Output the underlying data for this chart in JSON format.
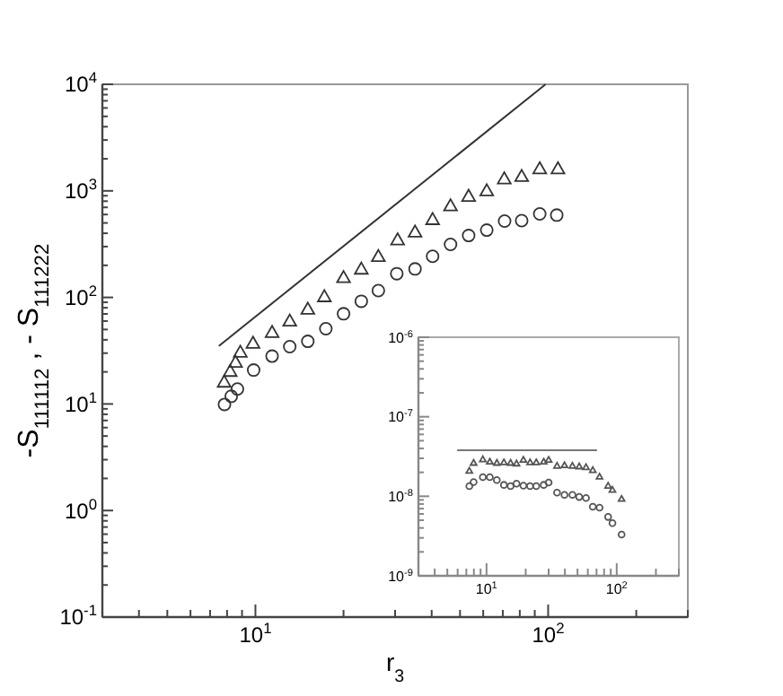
{
  "chart_data": [
    {
      "type": "scatter",
      "xlabel": "r$_{3}$",
      "ylabel": "-S$_{111112}$  ,   - S$_{111222}$",
      "log": "xy",
      "xlim": [
        3,
        300
      ],
      "ylim": [
        0.1,
        10000
      ],
      "xticks": [
        {
          "value": 4,
          "label": null
        },
        {
          "value": 5,
          "label": null
        },
        {
          "value": 6,
          "label": null
        },
        {
          "value": 7,
          "label": null
        },
        {
          "value": 8,
          "label": null
        },
        {
          "value": 9,
          "label": null
        },
        {
          "value": 10,
          "label": "10$^{1}$"
        },
        {
          "value": 20,
          "label": null
        },
        {
          "value": 30,
          "label": null
        },
        {
          "value": 40,
          "label": null
        },
        {
          "value": 50,
          "label": null
        },
        {
          "value": 60,
          "label": null
        },
        {
          "value": 70,
          "label": null
        },
        {
          "value": 80,
          "label": null
        },
        {
          "value": 90,
          "label": null
        },
        {
          "value": 100,
          "label": "10$^{2}$"
        },
        {
          "value": 200,
          "label": null
        },
        {
          "value": 300,
          "label": null
        }
      ],
      "yticks": [
        {
          "value": 0.1,
          "label": "10$^{-1}$"
        },
        {
          "value": 0.2,
          "label": null
        },
        {
          "value": 0.3,
          "label": null
        },
        {
          "value": 0.4,
          "label": null
        },
        {
          "value": 0.5,
          "label": null
        },
        {
          "value": 0.6,
          "label": null
        },
        {
          "value": 0.7,
          "label": null
        },
        {
          "value": 0.8,
          "label": null
        },
        {
          "value": 0.9,
          "label": null
        },
        {
          "value": 1,
          "label": "10$^{0}$"
        },
        {
          "value": 2,
          "label": null
        },
        {
          "value": 3,
          "label": null
        },
        {
          "value": 4,
          "label": null
        },
        {
          "value": 5,
          "label": null
        },
        {
          "value": 6,
          "label": null
        },
        {
          "value": 7,
          "label": null
        },
        {
          "value": 8,
          "label": null
        },
        {
          "value": 9,
          "label": null
        },
        {
          "value": 10,
          "label": "10$^{1}$"
        },
        {
          "value": 20,
          "label": null
        },
        {
          "value": 30,
          "label": null
        },
        {
          "value": 40,
          "label": null
        },
        {
          "value": 50,
          "label": null
        },
        {
          "value": 60,
          "label": null
        },
        {
          "value": 70,
          "label": null
        },
        {
          "value": 80,
          "label": null
        },
        {
          "value": 90,
          "label": null
        },
        {
          "value": 100,
          "label": "10$^{2}$"
        },
        {
          "value": 200,
          "label": null
        },
        {
          "value": 300,
          "label": null
        },
        {
          "value": 400,
          "label": null
        },
        {
          "value": 500,
          "label": null
        },
        {
          "value": 600,
          "label": null
        },
        {
          "value": 700,
          "label": null
        },
        {
          "value": 800,
          "label": null
        },
        {
          "value": 900,
          "label": null
        },
        {
          "value": 1000,
          "label": "10$^{3}$"
        },
        {
          "value": 2000,
          "label": null
        },
        {
          "value": 3000,
          "label": null
        },
        {
          "value": 4000,
          "label": null
        },
        {
          "value": 5000,
          "label": null
        },
        {
          "value": 6000,
          "label": null
        },
        {
          "value": 7000,
          "label": null
        },
        {
          "value": 8000,
          "label": null
        },
        {
          "value": 9000,
          "label": null
        },
        {
          "value": 10000,
          "label": "10$^{4}$"
        }
      ],
      "series": [
        {
          "type": "line",
          "color": "#333333",
          "x": [
            7.5,
            98
          ],
          "values": [
            35,
            10000
          ]
        },
        {
          "marker": "triangle",
          "color": "#333333",
          "x": [
            7.82,
            8.2,
            8.55,
            8.88,
            9.81,
            11.4,
            13.1,
            15.1,
            17.2,
            20.0,
            23.0,
            26.3,
            30.6,
            35.1,
            40.3,
            46.4,
            53.5,
            61.7,
            70.8,
            81.2,
            93.6,
            108
          ],
          "values": [
            16.1,
            20.3,
            24.7,
            30.7,
            37.3,
            47.1,
            60.2,
            77.8,
            102,
            154,
            185,
            243,
            348,
            412,
            540,
            726,
            893,
            1005,
            1300,
            1370,
            1620,
            1620
          ]
        },
        {
          "marker": "circle",
          "color": "#333333",
          "x": [
            7.84,
            8.27,
            8.68,
            9.86,
            11.4,
            13.1,
            15.1,
            17.4,
            20.0,
            23.0,
            26.3,
            30.4,
            35.1,
            40.3,
            46.4,
            53.5,
            61.7,
            71.0,
            81.2,
            93.6,
            107
          ],
          "values": [
            9.9,
            11.8,
            13.8,
            20.8,
            28.1,
            34.5,
            38.7,
            50.8,
            70.2,
            92,
            116,
            167,
            185,
            243,
            314,
            381,
            428,
            520,
            526,
            607,
            592
          ]
        }
      ]
    },
    {
      "type": "scatter",
      "log": "xy",
      "xlim": [
        3,
        300
      ],
      "ylim": [
        1e-09,
        1e-06
      ],
      "xticks": [
        {
          "value": 4,
          "label": null
        },
        {
          "value": 5,
          "label": null
        },
        {
          "value": 6,
          "label": null
        },
        {
          "value": 7,
          "label": null
        },
        {
          "value": 8,
          "label": null
        },
        {
          "value": 9,
          "label": null
        },
        {
          "value": 10,
          "label": "10$^{1}$"
        },
        {
          "value": 20,
          "label": null
        },
        {
          "value": 30,
          "label": null
        },
        {
          "value": 40,
          "label": null
        },
        {
          "value": 50,
          "label": null
        },
        {
          "value": 60,
          "label": null
        },
        {
          "value": 70,
          "label": null
        },
        {
          "value": 80,
          "label": null
        },
        {
          "value": 90,
          "label": null
        },
        {
          "value": 100,
          "label": "10$^{2}$"
        },
        {
          "value": 200,
          "label": null
        },
        {
          "value": 300,
          "label": null
        }
      ],
      "yticks": [
        {
          "value": 1e-09,
          "label": "10$^{-9}$"
        },
        {
          "value": 2e-09,
          "label": null
        },
        {
          "value": 3e-09,
          "label": null
        },
        {
          "value": 4e-09,
          "label": null
        },
        {
          "value": 5e-09,
          "label": null
        },
        {
          "value": 6e-09,
          "label": null
        },
        {
          "value": 7e-09,
          "label": null
        },
        {
          "value": 8e-09,
          "label": null
        },
        {
          "value": 9e-09,
          "label": null
        },
        {
          "value": 1e-08,
          "label": "10$^{-8}$"
        },
        {
          "value": 2e-08,
          "label": null
        },
        {
          "value": 3e-08,
          "label": null
        },
        {
          "value": 4e-08,
          "label": null
        },
        {
          "value": 5e-08,
          "label": null
        },
        {
          "value": 6e-08,
          "label": null
        },
        {
          "value": 7e-08,
          "label": null
        },
        {
          "value": 8e-08,
          "label": null
        },
        {
          "value": 9e-08,
          "label": null
        },
        {
          "value": 1e-07,
          "label": "10$^{-7}$"
        },
        {
          "value": 2e-07,
          "label": null
        },
        {
          "value": 3e-07,
          "label": null
        },
        {
          "value": 4e-07,
          "label": null
        },
        {
          "value": 5e-07,
          "label": null
        },
        {
          "value": 6e-07,
          "label": null
        },
        {
          "value": 7e-07,
          "label": null
        },
        {
          "value": 8e-07,
          "label": null
        },
        {
          "value": 9e-07,
          "label": null
        },
        {
          "value": 1e-06,
          "label": "10$^{-6}$"
        }
      ],
      "series": [
        {
          "type": "line",
          "color": "#777777",
          "x": [
            5.95,
            70.6
          ],
          "values": [
            3.8e-08,
            3.8e-08
          ]
        },
        {
          "marker": "triangle",
          "color": "#555555",
          "x": [
            7.38,
            7.96,
            9.37,
            10.6,
            12.0,
            13.6,
            15.3,
            17.0,
            19.2,
            21.6,
            24.1,
            27.5,
            30.0,
            34.8,
            39.7,
            45.7,
            51.5,
            58.1,
            65.5,
            73.8,
            85.9,
            92.7,
            109
          ],
          "values": [
            2.1e-08,
            2.64e-08,
            2.92e-08,
            2.73e-08,
            2.64e-08,
            2.68e-08,
            2.64e-08,
            2.59e-08,
            2.88e-08,
            2.68e-08,
            2.68e-08,
            2.73e-08,
            2.88e-08,
            2.42e-08,
            2.46e-08,
            2.42e-08,
            2.38e-08,
            2.33e-08,
            2.14e-08,
            1.77e-08,
            1.36e-08,
            1.21e-08,
            9.3e-09
          ]
        },
        {
          "marker": "circle",
          "color": "#555555",
          "x": [
            7.38,
            7.96,
            9.37,
            10.6,
            12.0,
            13.6,
            15.3,
            17.0,
            19.2,
            21.6,
            24.1,
            27.5,
            30.0,
            34.8,
            39.7,
            45.7,
            51.5,
            58.1,
            65.5,
            73.8,
            85.9,
            92.7,
            109
          ],
          "values": [
            1.34e-08,
            1.51e-08,
            1.74e-08,
            1.74e-08,
            1.6e-08,
            1.39e-08,
            1.34e-08,
            1.44e-08,
            1.36e-08,
            1.34e-08,
            1.34e-08,
            1.39e-08,
            1.49e-08,
            1.11e-08,
            1.04e-08,
            1.04e-08,
            9.8e-09,
            9.5e-09,
            7.4e-09,
            7.2e-09,
            5.5e-09,
            4.6e-09,
            3.3e-09
          ]
        }
      ]
    }
  ]
}
